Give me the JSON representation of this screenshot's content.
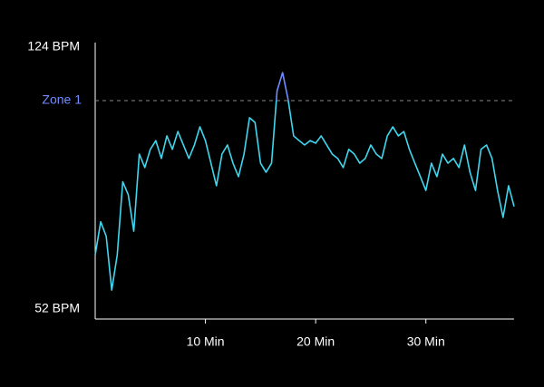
{
  "chart_data": {
    "type": "line",
    "x": [
      0,
      0.5,
      1,
      1.5,
      2,
      2.5,
      3,
      3.5,
      4,
      4.5,
      5,
      5.5,
      6,
      6.5,
      7,
      7.5,
      8,
      8.5,
      9,
      9.5,
      10,
      10.5,
      11,
      11.5,
      12,
      12.5,
      13,
      13.5,
      14,
      14.5,
      15,
      15.5,
      16,
      16.5,
      17,
      17.5,
      18,
      18.5,
      19,
      19.5,
      20,
      20.5,
      21,
      21.5,
      22,
      22.5,
      23,
      23.5,
      24,
      24.5,
      25,
      25.5,
      26,
      26.5,
      27,
      27.5,
      28,
      28.5,
      29,
      29.5,
      30,
      30.5,
      31,
      31.5,
      32,
      32.5,
      33,
      33.5,
      34,
      34.5,
      35,
      35.5,
      36,
      36.5,
      37,
      37.5,
      38
    ],
    "series": [
      {
        "color": "#3fd6ee",
        "values": [
          66.9,
          76,
          72,
          57.2,
          66.9,
          87,
          83.4,
          73.4,
          94.6,
          90.9,
          95.9,
          98.3,
          93.4,
          99.6,
          95.9,
          100.8,
          97.1,
          93.4,
          97.1,
          102.1,
          98.3,
          92.1,
          85.9,
          94.6,
          97.1,
          92.1,
          88.4,
          94.6,
          104.6,
          103.3,
          92.1,
          89.6,
          92.1,
          112,
          117,
          109.6,
          99.6,
          98.3,
          97.1,
          98.3,
          97.6,
          99.6,
          97.1,
          94.6,
          93.4,
          90.9,
          95.9,
          94.6,
          92.1,
          93.4,
          97.1,
          94.6,
          93.4,
          99.6,
          102.1,
          99.6,
          100.8,
          95.9,
          92.1,
          88.4,
          84.6,
          92.1,
          88.4,
          94.6,
          92.1,
          93.4,
          90.9,
          97.1,
          89.6,
          84.6,
          95.9,
          97.1,
          93.4,
          84.6,
          77.2,
          85.9,
          80.2
        ]
      }
    ],
    "zone": {
      "label": "Zone 1",
      "value": 109.3,
      "color": "#6f8cff"
    },
    "xlim": [
      0,
      38
    ],
    "xticks": [
      {
        "value": 10,
        "label": "10 Min"
      },
      {
        "value": 20,
        "label": "20 Min"
      },
      {
        "value": 30,
        "label": "30 Min"
      }
    ],
    "ylim": [
      52,
      124
    ],
    "yticks": [
      {
        "value": 52,
        "label": "52 BPM"
      },
      {
        "value": 124,
        "label": "124 BPM"
      }
    ]
  }
}
